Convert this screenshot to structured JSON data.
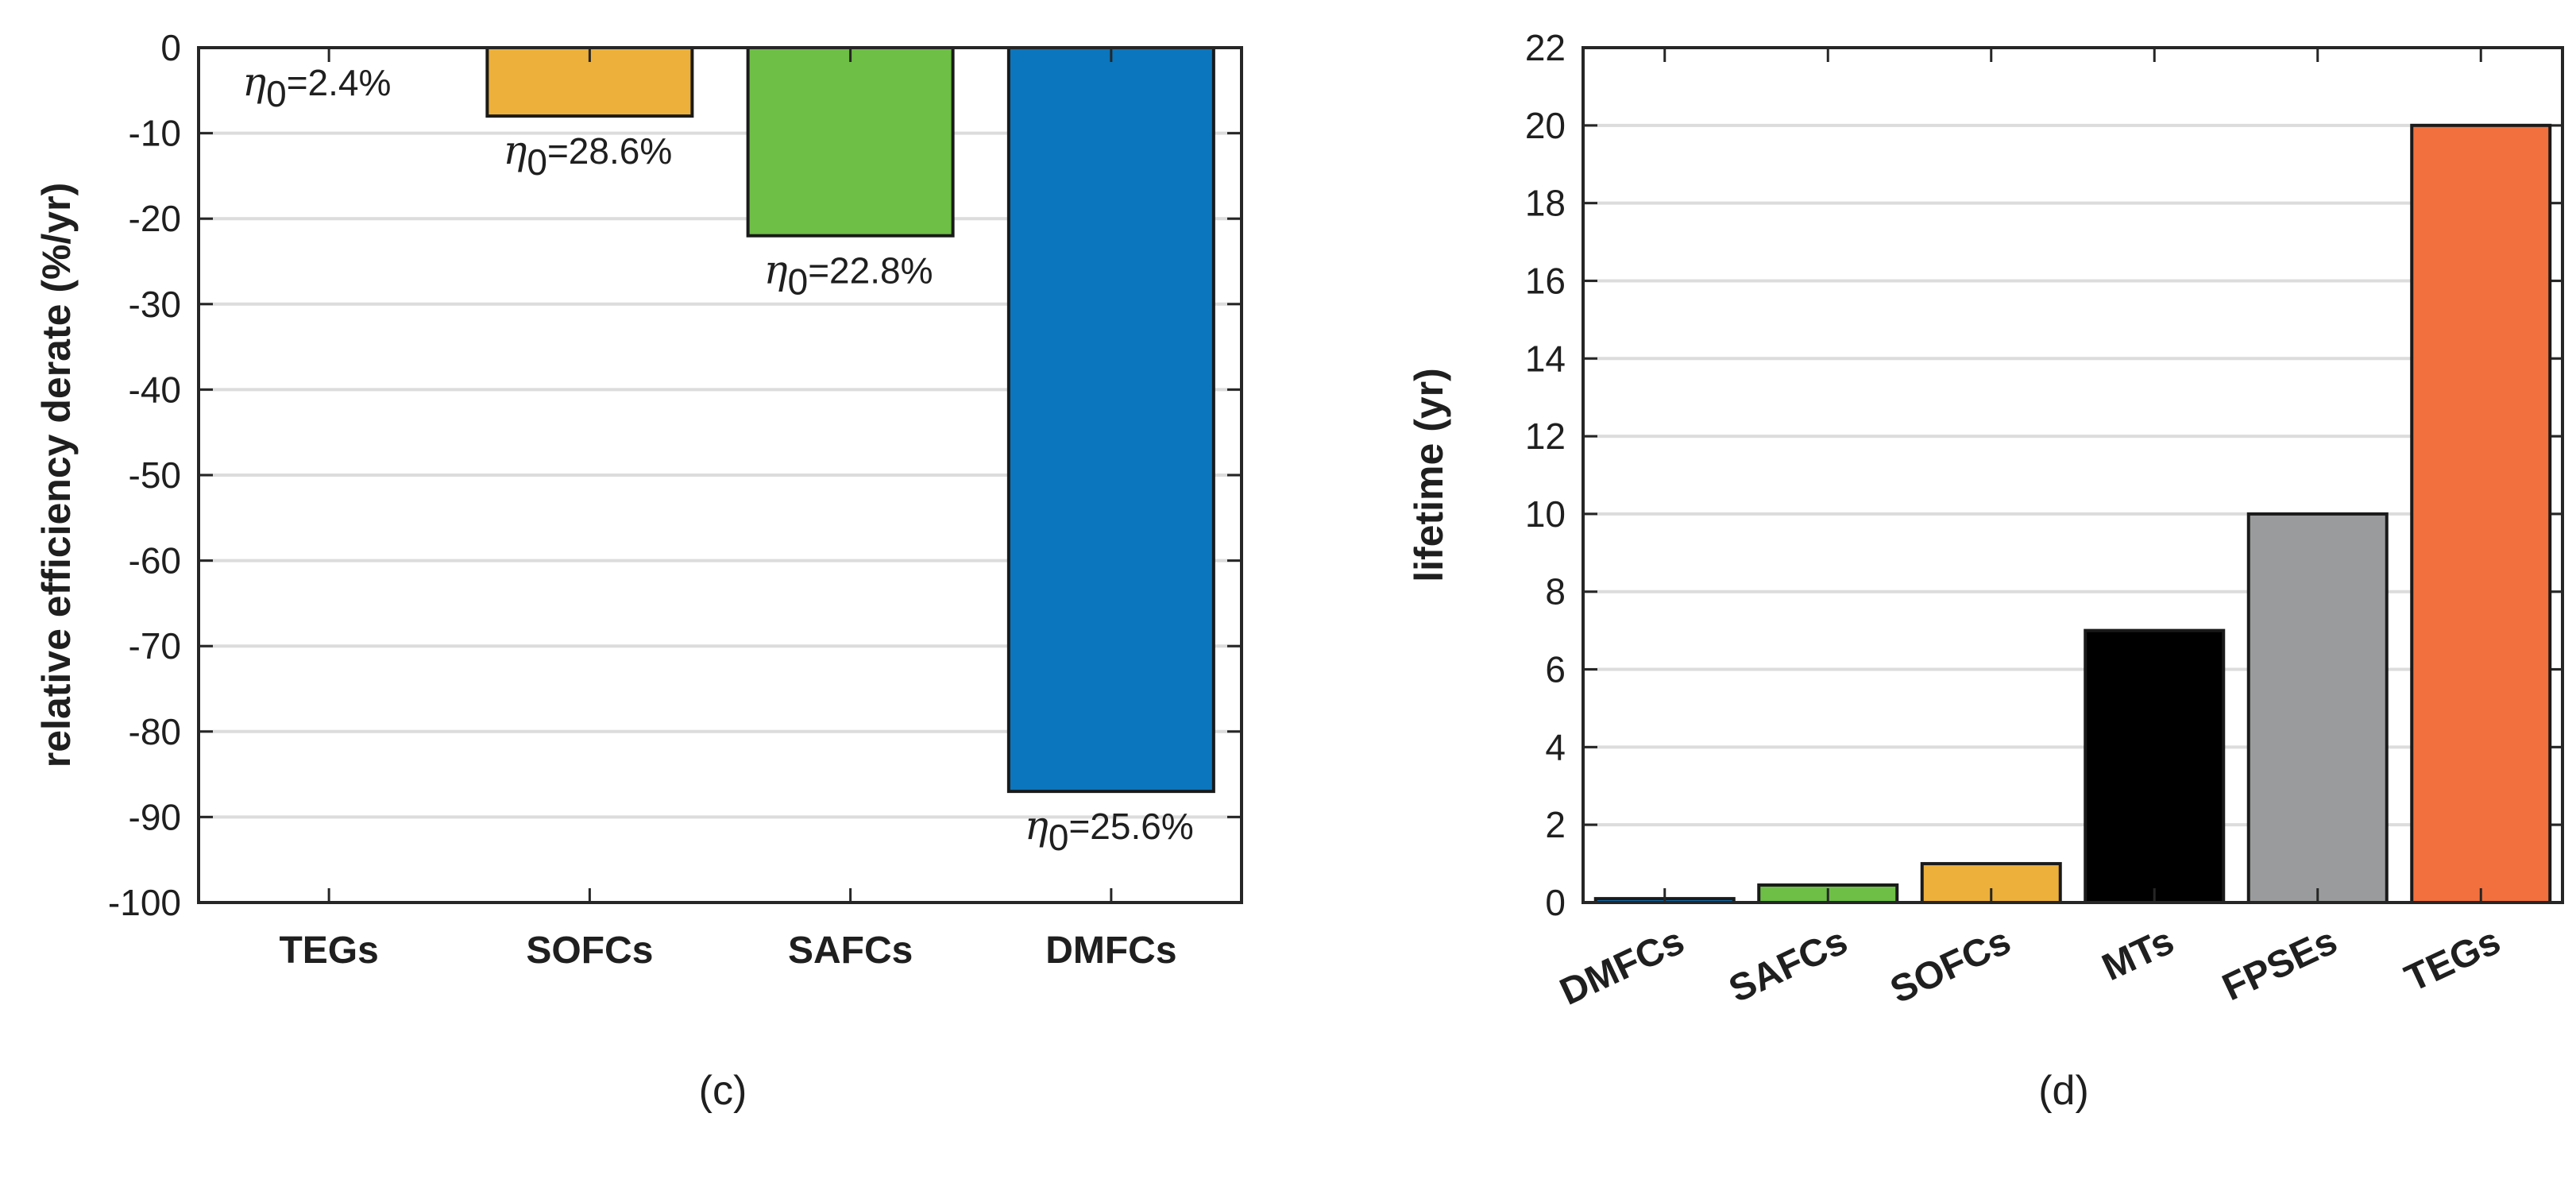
{
  "chart_data": [
    {
      "type": "bar",
      "panel_label": "(c)",
      "title": "",
      "xlabel": "",
      "ylabel": "relative efficiency derate (%/yr)",
      "ylim": [
        -100,
        0
      ],
      "yticks": [
        0,
        -10,
        -20,
        -30,
        -40,
        -50,
        -60,
        -70,
        -80,
        -90,
        -100
      ],
      "grid": "horizontal",
      "categories": [
        "TEGs",
        "SOFCs",
        "SAFCs",
        "DMFCs"
      ],
      "values": [
        0,
        -8,
        -22,
        -87
      ],
      "colors": [
        "#ffffff",
        "#edb03a",
        "#6dbf45",
        "#0b76bd"
      ],
      "annotations": [
        {
          "symbol": "η",
          "sub": "0",
          "text": "=2.4%"
        },
        {
          "symbol": "η",
          "sub": "0",
          "text": "=28.6%"
        },
        {
          "symbol": "η",
          "sub": "0",
          "text": "=22.8%"
        },
        {
          "symbol": "η",
          "sub": "0",
          "text": "=25.6%"
        }
      ]
    },
    {
      "type": "bar",
      "panel_label": "(d)",
      "title": "",
      "xlabel": "",
      "ylabel": "lifetime (yr)",
      "ylim": [
        0,
        22
      ],
      "yticks": [
        0,
        2,
        4,
        6,
        8,
        10,
        12,
        14,
        16,
        18,
        20,
        22
      ],
      "grid": "horizontal",
      "categories": [
        "DMFCs",
        "SAFCs",
        "SOFCs",
        "MTs",
        "FPSEs",
        "TEGs"
      ],
      "values": [
        0.1,
        0.45,
        1.0,
        7,
        10,
        20
      ],
      "colors": [
        "#0b76bd",
        "#6dbf45",
        "#edb03a",
        "#000000",
        "#9a9b9c",
        "#f2703d"
      ]
    }
  ]
}
